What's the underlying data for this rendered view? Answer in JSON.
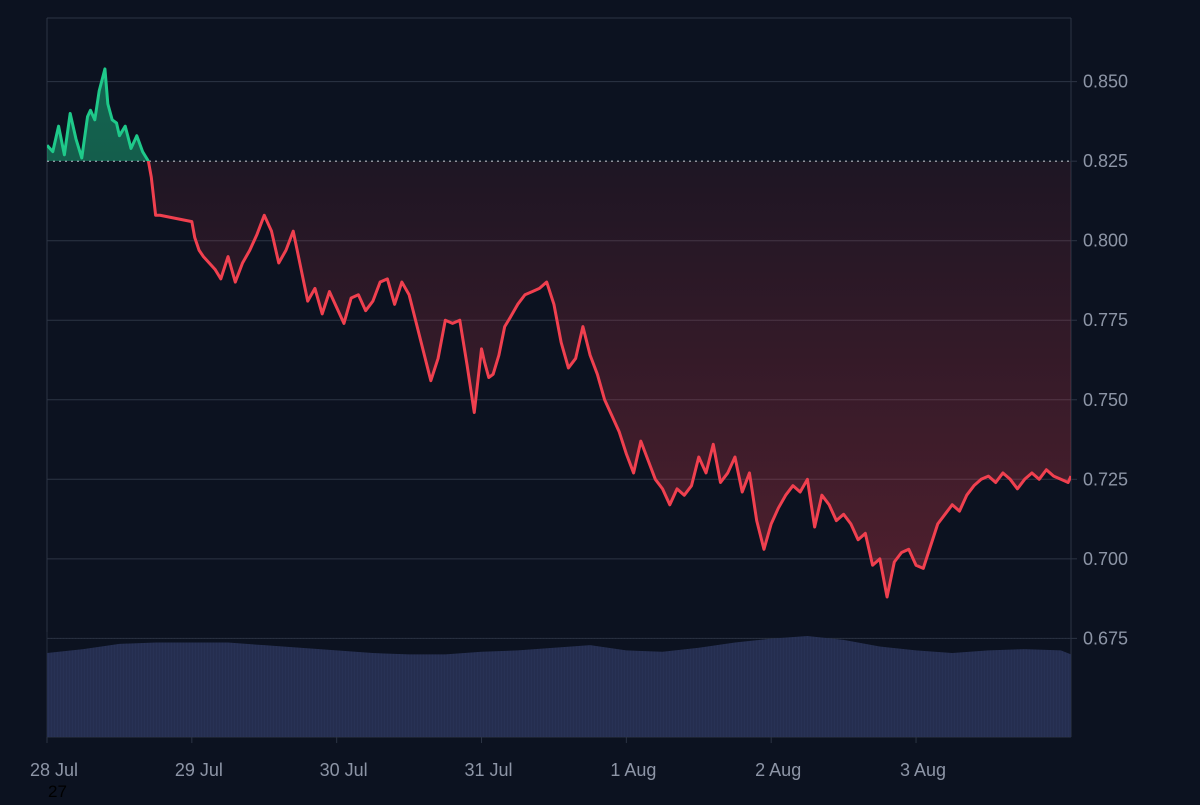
{
  "chart_data": {
    "type": "line",
    "title": "",
    "xlabel": "",
    "ylabel": "",
    "x_ticks": [
      "28 Jul",
      "29 Jul",
      "30 Jul",
      "31 Jul",
      "1 Aug",
      "2 Aug",
      "3 Aug"
    ],
    "y_ticks": [
      0.675,
      0.7,
      0.725,
      0.75,
      0.775,
      0.8,
      0.825,
      0.85
    ],
    "ylim": [
      0.644,
      0.87
    ],
    "xlim": [
      0,
      7.07
    ],
    "baseline": 0.825,
    "grid": true,
    "y_axis_position": "right",
    "colors": {
      "background": "#0c1220",
      "up": "#1fc98a",
      "down": "#f0404f",
      "grid": "#2c3444",
      "tick_text": "#8d95a6",
      "volume": "#2a3558"
    },
    "series": [
      {
        "x": [
          0,
          0.04,
          0.08,
          0.12,
          0.16,
          0.2,
          0.24,
          0.28,
          0.3,
          0.33,
          0.36,
          0.4,
          0.42,
          0.45,
          0.48,
          0.5,
          0.54,
          0.58,
          0.62,
          0.66,
          0.7,
          0.72,
          0.75,
          0.78,
          1.0,
          1.02,
          1.05,
          1.08,
          1.12,
          1.16,
          1.2,
          1.25,
          1.3,
          1.35,
          1.4,
          1.45,
          1.5,
          1.55,
          1.6,
          1.65,
          1.7,
          1.75,
          1.8,
          1.85,
          1.9,
          1.95,
          2.0,
          2.05,
          2.1,
          2.15,
          2.2,
          2.25,
          2.3,
          2.35,
          2.4,
          2.45,
          2.5,
          2.55,
          2.6,
          2.65,
          2.7,
          2.75,
          2.8,
          2.85,
          2.9,
          2.95,
          3.0,
          3.02,
          3.05,
          3.08,
          3.12,
          3.16,
          3.2,
          3.25,
          3.3,
          3.35,
          3.4,
          3.45,
          3.5,
          3.55,
          3.6,
          3.65,
          3.7,
          3.75,
          3.8,
          3.85,
          3.9,
          3.95,
          4.0,
          4.05,
          4.1,
          4.15,
          4.2,
          4.25,
          4.3,
          4.35,
          4.4,
          4.45,
          4.5,
          4.55,
          4.6,
          4.65,
          4.7,
          4.75,
          4.8,
          4.85,
          4.9,
          4.95,
          5.0,
          5.05,
          5.1,
          5.15,
          5.2,
          5.25,
          5.3,
          5.35,
          5.4,
          5.45,
          5.5,
          5.55,
          5.6,
          5.65,
          5.7,
          5.75,
          5.8,
          5.85,
          5.9,
          5.95,
          6.0,
          6.05,
          6.1,
          6.15,
          6.2,
          6.25,
          6.3,
          6.35,
          6.4,
          6.45,
          6.5,
          6.55,
          6.6,
          6.65,
          6.7,
          6.75,
          6.8,
          6.85,
          6.9,
          6.95,
          7.0,
          7.05,
          7.07
        ],
        "values": [
          0.83,
          0.828,
          0.836,
          0.827,
          0.84,
          0.832,
          0.826,
          0.839,
          0.841,
          0.838,
          0.847,
          0.854,
          0.843,
          0.838,
          0.837,
          0.833,
          0.836,
          0.829,
          0.833,
          0.828,
          0.825,
          0.82,
          0.808,
          0.808,
          0.806,
          0.801,
          0.797,
          0.795,
          0.793,
          0.791,
          0.788,
          0.795,
          0.787,
          0.793,
          0.797,
          0.802,
          0.808,
          0.803,
          0.793,
          0.797,
          0.803,
          0.792,
          0.781,
          0.785,
          0.777,
          0.784,
          0.779,
          0.774,
          0.782,
          0.783,
          0.778,
          0.781,
          0.787,
          0.788,
          0.78,
          0.787,
          0.783,
          0.774,
          0.765,
          0.756,
          0.763,
          0.775,
          0.774,
          0.775,
          0.761,
          0.746,
          0.766,
          0.762,
          0.757,
          0.758,
          0.764,
          0.773,
          0.776,
          0.78,
          0.783,
          0.784,
          0.785,
          0.787,
          0.78,
          0.768,
          0.76,
          0.763,
          0.773,
          0.764,
          0.758,
          0.75,
          0.745,
          0.74,
          0.733,
          0.727,
          0.737,
          0.731,
          0.725,
          0.722,
          0.717,
          0.722,
          0.72,
          0.723,
          0.732,
          0.727,
          0.736,
          0.724,
          0.727,
          0.732,
          0.721,
          0.727,
          0.712,
          0.703,
          0.711,
          0.716,
          0.72,
          0.723,
          0.721,
          0.725,
          0.71,
          0.72,
          0.717,
          0.712,
          0.714,
          0.711,
          0.706,
          0.708,
          0.698,
          0.7,
          0.688,
          0.699,
          0.702,
          0.703,
          0.698,
          0.697,
          0.704,
          0.711,
          0.714,
          0.717,
          0.715,
          0.72,
          0.723,
          0.725,
          0.726,
          0.724,
          0.727,
          0.725,
          0.722,
          0.725,
          0.727,
          0.725,
          0.728,
          0.726,
          0.725,
          0.724,
          0.726
        ]
      }
    ],
    "volume": {
      "x": [
        0,
        0.25,
        0.5,
        0.75,
        1.0,
        1.25,
        1.5,
        1.75,
        2.0,
        2.25,
        2.5,
        2.75,
        3.0,
        3.25,
        3.5,
        3.75,
        4.0,
        4.25,
        4.5,
        4.75,
        5.0,
        5.25,
        5.5,
        5.75,
        6.0,
        6.25,
        6.5,
        6.75,
        7.0,
        7.07
      ],
      "values": [
        64,
        67,
        71,
        72,
        72,
        72,
        70,
        68,
        66,
        64,
        63,
        63,
        65,
        66,
        68,
        70,
        66,
        65,
        68,
        72,
        75,
        77,
        74,
        69,
        66,
        64,
        66,
        67,
        66,
        63
      ]
    }
  },
  "stray_label": "27"
}
